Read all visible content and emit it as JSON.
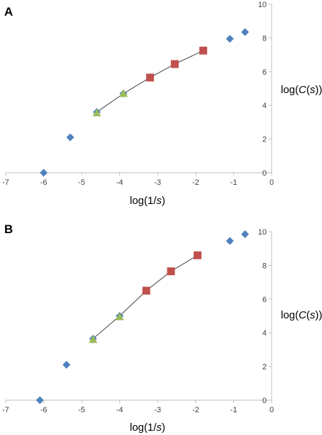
{
  "chart_data": [
    {
      "type": "scatter",
      "panel_label": "A",
      "xlabel_prefix": "log(1/",
      "xlabel_var": "s",
      "xlabel_suffix": ")",
      "ylabel_prefix": "log(",
      "ylabel_var": "C",
      "ylabel_mid": "(",
      "ylabel_var2": "s",
      "ylabel_suffix": "))",
      "xlim": [
        -7,
        0
      ],
      "ylim": [
        0,
        10
      ],
      "xticks": [
        "-7",
        "-6",
        "-5",
        "-4",
        "-3",
        "-2",
        "-1",
        "0"
      ],
      "yticks": [
        "0",
        "2",
        "4",
        "6",
        "8",
        "10"
      ],
      "grid": false,
      "series": [
        {
          "marker": "diamond",
          "color": "#4f81bd",
          "x": [
            -6.0,
            -5.3,
            -4.6,
            -3.9,
            -3.2,
            -2.55,
            -1.8,
            -1.1,
            -0.7
          ],
          "y": [
            0.0,
            2.1,
            3.6,
            4.7,
            5.65,
            6.45,
            7.25,
            7.95,
            8.35
          ]
        },
        {
          "marker": "triangle",
          "color": "#9bbb59",
          "x": [
            -4.6,
            -3.9,
            -3.2
          ],
          "y": [
            3.55,
            4.7,
            5.65
          ]
        },
        {
          "marker": "square",
          "color": "#c0504d",
          "x": [
            -3.2,
            -2.55,
            -1.8
          ],
          "y": [
            5.65,
            6.45,
            7.25
          ]
        }
      ],
      "fit_line": {
        "color": "#404040",
        "x": [
          -4.6,
          -3.9,
          -3.2,
          -2.55,
          -1.8
        ],
        "y": [
          3.6,
          4.7,
          5.65,
          6.45,
          7.25
        ]
      }
    },
    {
      "type": "scatter",
      "panel_label": "B",
      "xlabel_prefix": "log(1/",
      "xlabel_var": "s",
      "xlabel_suffix": ")",
      "ylabel_prefix": "log(",
      "ylabel_var": "C",
      "ylabel_mid": "(",
      "ylabel_var2": "s",
      "ylabel_suffix": "))",
      "xlim": [
        -7,
        0
      ],
      "ylim": [
        0,
        10
      ],
      "xticks": [
        "-7",
        "-6",
        "-5",
        "-4",
        "-3",
        "-2",
        "-1",
        "0"
      ],
      "yticks": [
        "0",
        "2",
        "4",
        "6",
        "8",
        "10"
      ],
      "grid": false,
      "series": [
        {
          "marker": "diamond",
          "color": "#4f81bd",
          "x": [
            -6.1,
            -5.4,
            -4.7,
            -4.0,
            -3.3,
            -2.65,
            -1.95,
            -1.1,
            -0.7
          ],
          "y": [
            0.0,
            2.1,
            3.65,
            5.0,
            6.5,
            7.65,
            8.6,
            9.45,
            9.85
          ]
        },
        {
          "marker": "triangle",
          "color": "#9bbb59",
          "x": [
            -4.7,
            -4.0,
            -3.3
          ],
          "y": [
            3.6,
            4.95,
            6.5
          ]
        },
        {
          "marker": "square",
          "color": "#c0504d",
          "x": [
            -3.3,
            -2.65,
            -1.95
          ],
          "y": [
            6.5,
            7.65,
            8.6
          ]
        }
      ],
      "fit_line": {
        "color": "#404040",
        "x": [
          -4.7,
          -4.0,
          -3.3,
          -2.65,
          -1.95
        ],
        "y": [
          3.65,
          5.0,
          6.5,
          7.65,
          8.6
        ]
      }
    }
  ]
}
